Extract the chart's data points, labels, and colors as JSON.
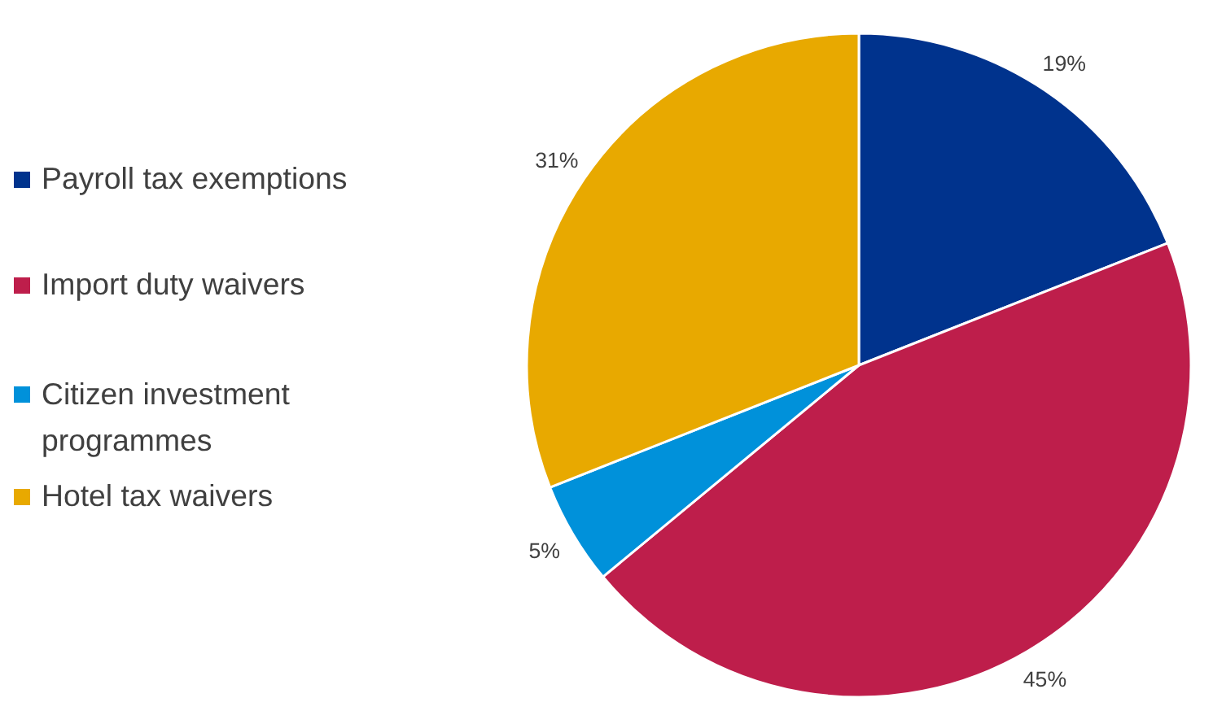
{
  "chart_data": {
    "type": "pie",
    "categories": [
      "Payroll tax exemptions",
      "Import duty waivers",
      "Citizen investment programmes",
      "Hotel tax waivers"
    ],
    "values": [
      19,
      45,
      5,
      31
    ],
    "colors": [
      "#00338d",
      "#be1e4b",
      "#0091da",
      "#e8a900"
    ],
    "value_labels": [
      "19%",
      "45%",
      "5%",
      "31%"
    ],
    "legend": "left"
  }
}
